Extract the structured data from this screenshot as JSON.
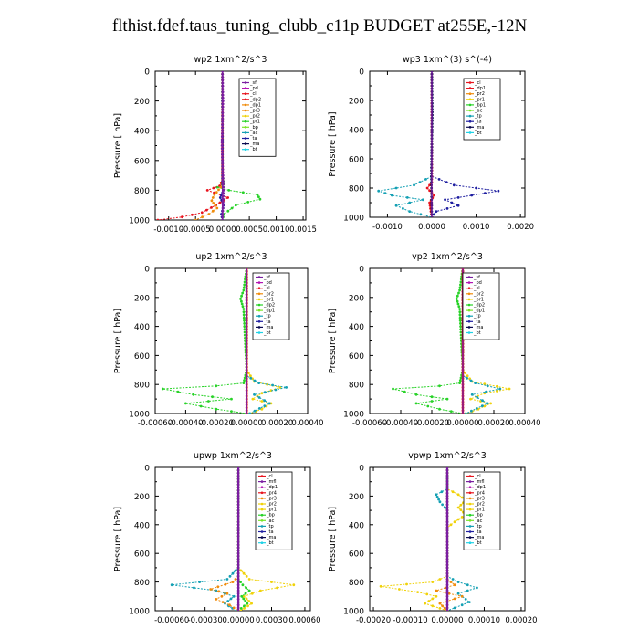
{
  "title": "flthist.fdef.taus_tuning_clubb_c11p  BUDGET at255E,-12N",
  "colors": {
    "red": "#e8141e",
    "orange": "#f08c0c",
    "yellow": "#f0d20a",
    "green": "#28d228",
    "lime": "#78e628",
    "teal": "#14a0b4",
    "blue": "#1e1ea0",
    "navy": "#0a0a50",
    "purple": "#7a1fa0",
    "cyan": "#1ed2e6",
    "magenta": "#b414b4",
    "grey": "#5a5a5a"
  },
  "chart_data": [
    {
      "type": "line",
      "title": "wp2   1xm^2/s^3",
      "ylabel": "Pressure [ hPa]",
      "ylim": [
        1000,
        0
      ],
      "xlim": [
        -0.00125,
        0.00155
      ],
      "xticks": [
        "-0.0010",
        "-0.0005",
        "0.0000",
        "0.0005",
        "0.0010",
        "0.0015"
      ],
      "xtick_values": [
        -0.001,
        -0.0005,
        0,
        0.0005,
        0.001,
        0.0015
      ],
      "yticks": [
        "0",
        "200",
        "400",
        "600",
        "800",
        "1000"
      ],
      "legend": [
        "_sf",
        "_pd",
        "_cl",
        "_dp2",
        "_dp1",
        "_pr3",
        "_pr2",
        "_pr1",
        "_bp",
        "_ac",
        "_ta",
        "_ma",
        "_bt"
      ],
      "legend_colors": [
        "purple",
        "magenta",
        "red",
        "red",
        "orange",
        "orange",
        "yellow",
        "green",
        "lime",
        "teal",
        "blue",
        "navy",
        "cyan"
      ],
      "series": [
        {
          "color": "green",
          "x": [
            0,
            0,
            3e-05,
            -0.0001,
            0.00012,
            0.00065,
            0.0007,
            0.00025,
            3e-05,
            0
          ],
          "y": [
            0,
            700,
            760,
            780,
            800,
            830,
            860,
            900,
            960,
            1000
          ]
        },
        {
          "color": "red",
          "x": [
            0,
            0,
            -5e-05,
            -0.00028,
            0.0001,
            -0.00012,
            -0.00038,
            -0.00075,
            -0.0012
          ],
          "y": [
            0,
            730,
            770,
            800,
            850,
            900,
            950,
            980,
            1000
          ]
        },
        {
          "color": "orange",
          "x": [
            0,
            0,
            -3e-05,
            -0.00015,
            -0.0002,
            -0.0001,
            -0.00025,
            -0.0005
          ],
          "y": [
            0,
            740,
            780,
            830,
            870,
            920,
            960,
            1000
          ]
        },
        {
          "color": "blue",
          "x": [
            0,
            0,
            2e-05,
            -4e-05,
            3e-05,
            -2e-05,
            0
          ],
          "y": [
            0,
            760,
            800,
            850,
            900,
            960,
            1000
          ]
        },
        {
          "color": "purple",
          "x": [
            0,
            1e-05,
            -1e-05,
            2e-05,
            0
          ],
          "y": [
            0,
            200,
            500,
            800,
            1000
          ]
        }
      ]
    },
    {
      "type": "line",
      "title": "wp3   1xm^(3) s^(-4)",
      "ylabel": "Pressure [ hPa]",
      "ylim": [
        1000,
        0
      ],
      "xlim": [
        -0.0014,
        0.0021
      ],
      "xticks": [
        "-0.0010",
        "0.0000",
        "0.0010",
        "0.0020"
      ],
      "xtick_values": [
        -0.001,
        0,
        0.001,
        0.002
      ],
      "yticks": [
        "0",
        "200",
        "400",
        "600",
        "800",
        "1000"
      ],
      "legend": [
        "_cl",
        "_dp1",
        "_pr2",
        "_pr1",
        "_bp1",
        "_ac",
        "_tp",
        "_ta",
        "_ma",
        "_bt"
      ],
      "legend_colors": [
        "red",
        "red",
        "orange",
        "yellow",
        "green",
        "lime",
        "teal",
        "blue",
        "navy",
        "cyan"
      ],
      "series": [
        {
          "color": "teal",
          "x": [
            0,
            0,
            -0.0004,
            -0.0012,
            -0.0009,
            -0.0002,
            -0.0008,
            -0.0005,
            0
          ],
          "y": [
            0,
            720,
            780,
            820,
            850,
            880,
            920,
            960,
            1000
          ]
        },
        {
          "color": "blue",
          "x": [
            0,
            0,
            0.0005,
            0.0015,
            0.0009,
            0.0003,
            0.0006,
            0.0001,
            0
          ],
          "y": [
            0,
            720,
            780,
            820,
            850,
            880,
            920,
            960,
            1000
          ]
        },
        {
          "color": "red",
          "x": [
            0,
            0,
            -0.0001,
            5e-05,
            -5e-05,
            0
          ],
          "y": [
            0,
            760,
            800,
            850,
            900,
            1000
          ]
        },
        {
          "color": "navy",
          "x": [
            0,
            1e-05,
            -1e-05,
            0
          ],
          "y": [
            0,
            300,
            700,
            1000
          ]
        }
      ]
    },
    {
      "type": "line",
      "title": "up2   1xm^2/s^3",
      "ylabel": "Pressure [ hPa]",
      "ylim": [
        1000,
        0
      ],
      "xlim": [
        -0.0006,
        0.0004
      ],
      "xticks": [
        "-0.00060",
        "-0.00040",
        "-0.00020",
        "0.00000",
        "0.00020",
        "0.00040"
      ],
      "xtick_values": [
        -0.0006,
        -0.0004,
        -0.0002,
        0,
        0.0002,
        0.0004
      ],
      "yticks": [
        "0",
        "200",
        "400",
        "600",
        "800",
        "1000"
      ],
      "legend": [
        "_sf",
        "_pd",
        "_cl",
        "_pr2",
        "_pr1",
        "_dp2",
        "_dp1",
        "_tp",
        "_ta",
        "_ma",
        "_bt"
      ],
      "legend_colors": [
        "purple",
        "magenta",
        "red",
        "orange",
        "yellow",
        "green",
        "lime",
        "teal",
        "blue",
        "navy",
        "cyan"
      ],
      "series": [
        {
          "color": "green",
          "x": [
            0,
            -2e-05,
            -4e-05,
            -2e-05,
            0,
            -2e-05,
            -0.0002,
            -0.00055,
            -0.00035,
            -0.0001,
            -0.0004,
            -0.0002,
            0
          ],
          "y": [
            0,
            150,
            210,
            280,
            700,
            790,
            810,
            830,
            870,
            900,
            930,
            970,
            1000
          ]
        },
        {
          "color": "yellow",
          "x": [
            0,
            0,
            5e-05,
            0.00022,
            0.0001,
            4e-05,
            0.00016,
            0.0001,
            2e-05
          ],
          "y": [
            0,
            700,
            780,
            820,
            860,
            900,
            930,
            970,
            1000
          ]
        },
        {
          "color": "teal",
          "x": [
            0,
            0,
            8e-05,
            0.00026,
            5e-05,
            0.00015,
            2e-05
          ],
          "y": [
            0,
            740,
            790,
            820,
            870,
            930,
            1000
          ]
        },
        {
          "color": "red",
          "x": [
            0,
            0,
            0
          ],
          "y": [
            0,
            500,
            1000
          ]
        }
      ]
    },
    {
      "type": "line",
      "title": "vp2   1xm^2/s^3",
      "ylabel": "Pressure [ hPa]",
      "ylim": [
        1000,
        0
      ],
      "xlim": [
        -0.0006,
        0.0004
      ],
      "xticks": [
        "-0.00060",
        "-0.00040",
        "-0.00020",
        "0.00000",
        "0.00020",
        "0.00040"
      ],
      "xtick_values": [
        -0.0006,
        -0.0004,
        -0.0002,
        0,
        0.0002,
        0.0004
      ],
      "yticks": [
        "0",
        "200",
        "400",
        "600",
        "800",
        "1000"
      ],
      "legend": [
        "_sf",
        "_pd",
        "_cl",
        "_pr2",
        "_pr1",
        "_dp2",
        "_dp1",
        "_tp",
        "_ta",
        "_ma",
        "_bt"
      ],
      "legend_colors": [
        "purple",
        "magenta",
        "red",
        "orange",
        "yellow",
        "green",
        "lime",
        "teal",
        "blue",
        "navy",
        "cyan"
      ],
      "series": [
        {
          "color": "green",
          "x": [
            0,
            -2e-05,
            -4e-05,
            -2e-05,
            0,
            -2e-05,
            -0.00015,
            -0.00045,
            -0.0003,
            -0.0001,
            -0.0003,
            -0.00015,
            0
          ],
          "y": [
            0,
            150,
            210,
            280,
            700,
            790,
            810,
            830,
            870,
            900,
            930,
            970,
            1000
          ]
        },
        {
          "color": "yellow",
          "x": [
            0,
            0,
            6e-05,
            0.0003,
            0.00014,
            5e-05,
            0.00018,
            0.0001,
            2e-05
          ],
          "y": [
            0,
            700,
            780,
            830,
            860,
            900,
            930,
            970,
            1000
          ]
        },
        {
          "color": "teal",
          "x": [
            0,
            0,
            8e-05,
            0.00024,
            6e-05,
            0.00016,
            2e-05
          ],
          "y": [
            0,
            740,
            790,
            830,
            870,
            930,
            1000
          ]
        },
        {
          "color": "red",
          "x": [
            0,
            0,
            0
          ],
          "y": [
            0,
            500,
            1000
          ]
        }
      ]
    },
    {
      "type": "line",
      "title": "upwp   1xm^2/s^3",
      "ylabel": "Pressure [ hPa]",
      "ylim": [
        1000,
        0
      ],
      "xlim": [
        -0.00075,
        0.00065
      ],
      "xticks": [
        "-0.00060",
        "-0.00030",
        "0.00000",
        "0.00030",
        "0.00060"
      ],
      "xtick_values": [
        -0.0006,
        -0.0003,
        0,
        0.0003,
        0.0006
      ],
      "yticks": [
        "0",
        "200",
        "400",
        "600",
        "800",
        "1000"
      ],
      "legend": [
        "_cl",
        "_mfl",
        "_dp1",
        "_pr4",
        "_pr3",
        "_pr2",
        "_pr1",
        "_bp",
        "_ac",
        "_tp",
        "_ta",
        "_ma",
        "_bt"
      ],
      "legend_colors": [
        "red",
        "purple",
        "magenta",
        "red",
        "orange",
        "yellow",
        "yellow",
        "green",
        "lime",
        "teal",
        "blue",
        "navy",
        "cyan"
      ],
      "series": [
        {
          "color": "yellow",
          "x": [
            0,
            0,
            0.0001,
            0.0005,
            0.0002,
            5e-05,
            0.00012,
            2e-05
          ],
          "y": [
            0,
            700,
            780,
            820,
            860,
            900,
            950,
            1000
          ]
        },
        {
          "color": "teal",
          "x": [
            0,
            0,
            -0.0001,
            -0.0006,
            -0.0002,
            -4e-05,
            -0.00012,
            -2e-05
          ],
          "y": [
            0,
            700,
            780,
            820,
            860,
            900,
            950,
            1000
          ]
        },
        {
          "color": "orange",
          "x": [
            0,
            0,
            -5e-05,
            -0.00025,
            -0.0001,
            -0.0002,
            -8e-05,
            0
          ],
          "y": [
            0,
            760,
            800,
            850,
            880,
            920,
            960,
            1000
          ]
        },
        {
          "color": "green",
          "x": [
            0,
            0,
            4e-05,
            0.0001,
            3e-05,
            8e-05,
            0
          ],
          "y": [
            0,
            780,
            820,
            860,
            900,
            950,
            1000
          ]
        },
        {
          "color": "purple",
          "x": [
            0,
            0,
            0
          ],
          "y": [
            0,
            500,
            1000
          ]
        }
      ]
    },
    {
      "type": "line",
      "title": "vpwp   1xm^2/s^3",
      "ylabel": "Pressure [ hPa]",
      "ylim": [
        1000,
        0
      ],
      "xlim": [
        -0.00021,
        0.00021
      ],
      "xticks": [
        "-0.00020",
        "-0.00010",
        "0.00000",
        "0.00010",
        "0.00020"
      ],
      "xtick_values": [
        -0.0002,
        -0.0001,
        0,
        0.0001,
        0.0002
      ],
      "yticks": [
        "0",
        "200",
        "400",
        "600",
        "800",
        "1000"
      ],
      "legend": [
        "_cl",
        "_mfl",
        "_dp1",
        "_pr4",
        "_pr3",
        "_pr2",
        "_pr1",
        "_bp",
        "_ac",
        "_tp",
        "_ta",
        "_ma",
        "_bt"
      ],
      "legend_colors": [
        "red",
        "purple",
        "magenta",
        "red",
        "orange",
        "yellow",
        "yellow",
        "green",
        "lime",
        "teal",
        "blue",
        "navy",
        "cyan"
      ],
      "series": [
        {
          "color": "yellow",
          "x": [
            0,
            0,
            3e-05,
            5e-05,
            3e-05,
            5e-05,
            2e-05,
            0,
            0,
            -4e-05,
            -0.00018,
            -8e-05,
            -3e-05,
            -6e-05,
            0
          ],
          "y": [
            0,
            150,
            190,
            230,
            280,
            330,
            380,
            420,
            760,
            800,
            830,
            870,
            900,
            950,
            1000
          ]
        },
        {
          "color": "teal",
          "x": [
            0,
            0,
            -3e-05,
            -2e-05,
            0,
            0,
            3e-05,
            8e-05,
            3e-05,
            6e-05,
            0
          ],
          "y": [
            0,
            150,
            190,
            240,
            300,
            760,
            800,
            840,
            880,
            940,
            1000
          ]
        },
        {
          "color": "orange",
          "x": [
            0,
            0,
            2e-05,
            -3e-05,
            4e-05,
            -2e-05,
            0
          ],
          "y": [
            0,
            780,
            820,
            860,
            900,
            950,
            1000
          ]
        },
        {
          "color": "purple",
          "x": [
            0,
            0,
            0
          ],
          "y": [
            0,
            500,
            1000
          ]
        }
      ]
    }
  ]
}
